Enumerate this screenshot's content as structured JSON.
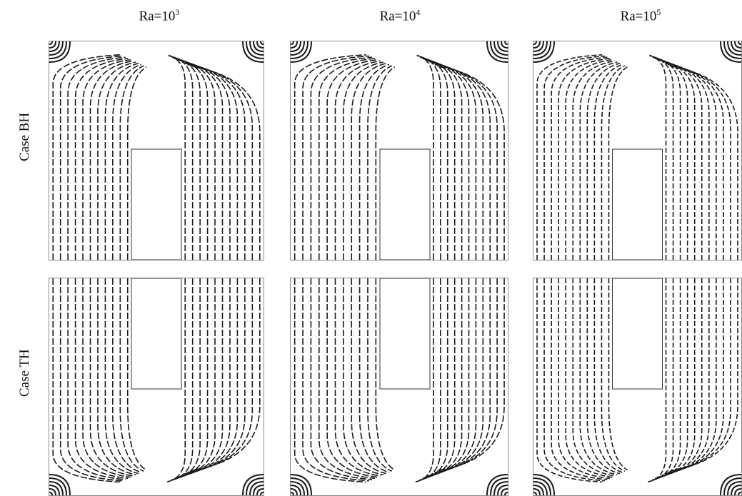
{
  "figure": {
    "columns": [
      {
        "prefix": "Ra=10",
        "exp": "3"
      },
      {
        "prefix": "Ra=10",
        "exp": "4"
      },
      {
        "prefix": "Ra=10",
        "exp": "5"
      }
    ],
    "rows": [
      {
        "label": "Case  BH",
        "heater": "bottom"
      },
      {
        "label": "Case  TH",
        "heater": "top"
      }
    ],
    "line_color": "#1a1a1a",
    "frame_color": "#888888"
  }
}
